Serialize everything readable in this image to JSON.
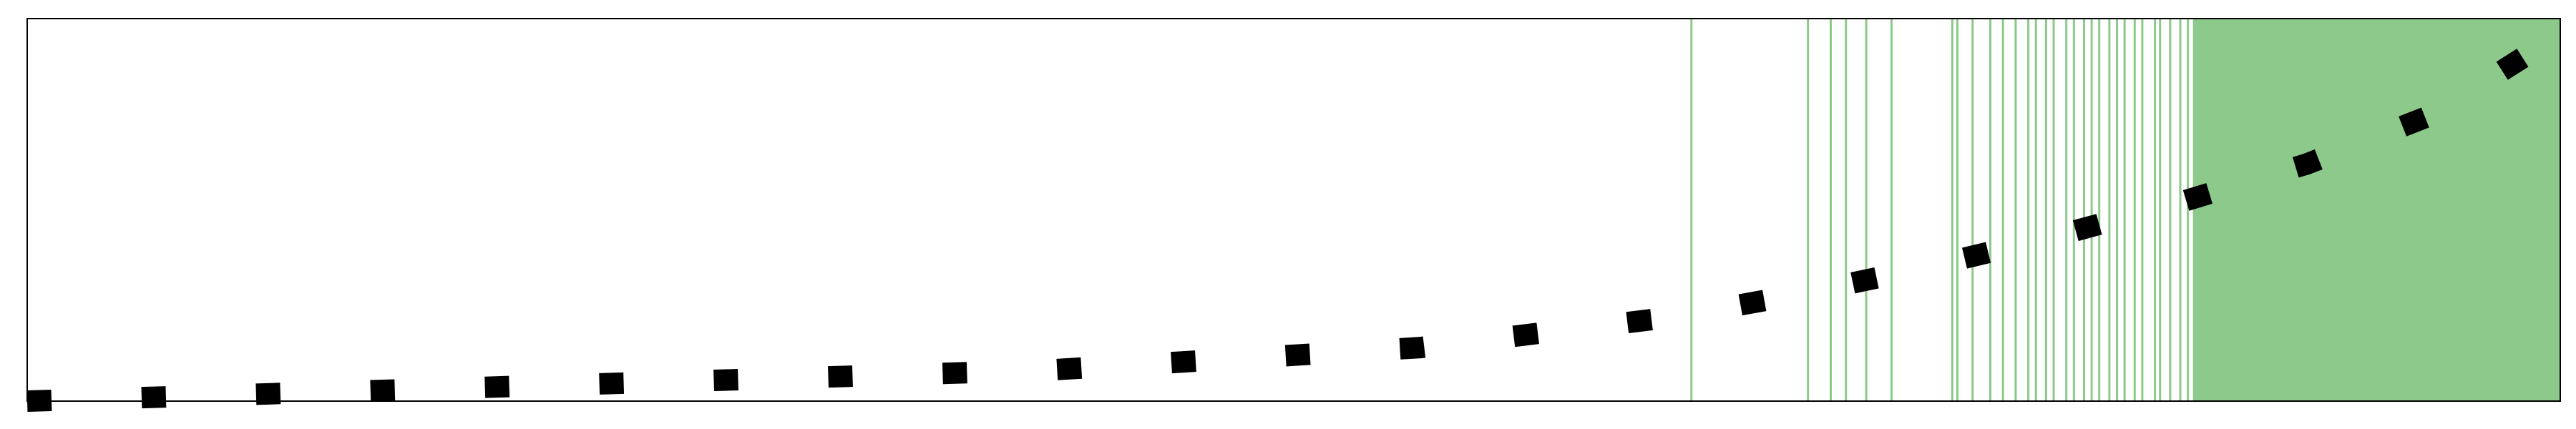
{
  "chart_data": {
    "type": "line",
    "title": "",
    "xlabel": "",
    "ylabel": "",
    "grid": false,
    "xlim": [
      0,
      1
    ],
    "ylim": [
      0,
      1
    ],
    "series": [
      {
        "name": "curve",
        "style": "dashed",
        "color": "#000000",
        "x": [
          0.0,
          0.05,
          0.1,
          0.15,
          0.2,
          0.25,
          0.3,
          0.35,
          0.4,
          0.45,
          0.5,
          0.55,
          0.6,
          0.65,
          0.7,
          0.75,
          0.8,
          0.85,
          0.9,
          0.95,
          1.0
        ],
        "y": [
          0.0,
          0.01,
          0.02,
          0.03,
          0.04,
          0.05,
          0.06,
          0.07,
          0.08,
          0.1,
          0.12,
          0.14,
          0.18,
          0.22,
          0.28,
          0.35,
          0.43,
          0.52,
          0.62,
          0.75,
          0.96
        ]
      }
    ],
    "vlines": {
      "color": "#8cc98a",
      "x": [
        0.657,
        0.703,
        0.712,
        0.718,
        0.726,
        0.736,
        0.76,
        0.762,
        0.768,
        0.775,
        0.78,
        0.785,
        0.79,
        0.793,
        0.797,
        0.8,
        0.805,
        0.808,
        0.812,
        0.815,
        0.818,
        0.822,
        0.825,
        0.828,
        0.832,
        0.835,
        0.84,
        0.842,
        0.846,
        0.85,
        0.853,
        0.857,
        0.86,
        0.864,
        0.868,
        0.872,
        0.876,
        0.88,
        0.884,
        0.888,
        0.892,
        0.896,
        0.9,
        0.903
      ],
      "dense_fill_from": 0.855
    }
  }
}
